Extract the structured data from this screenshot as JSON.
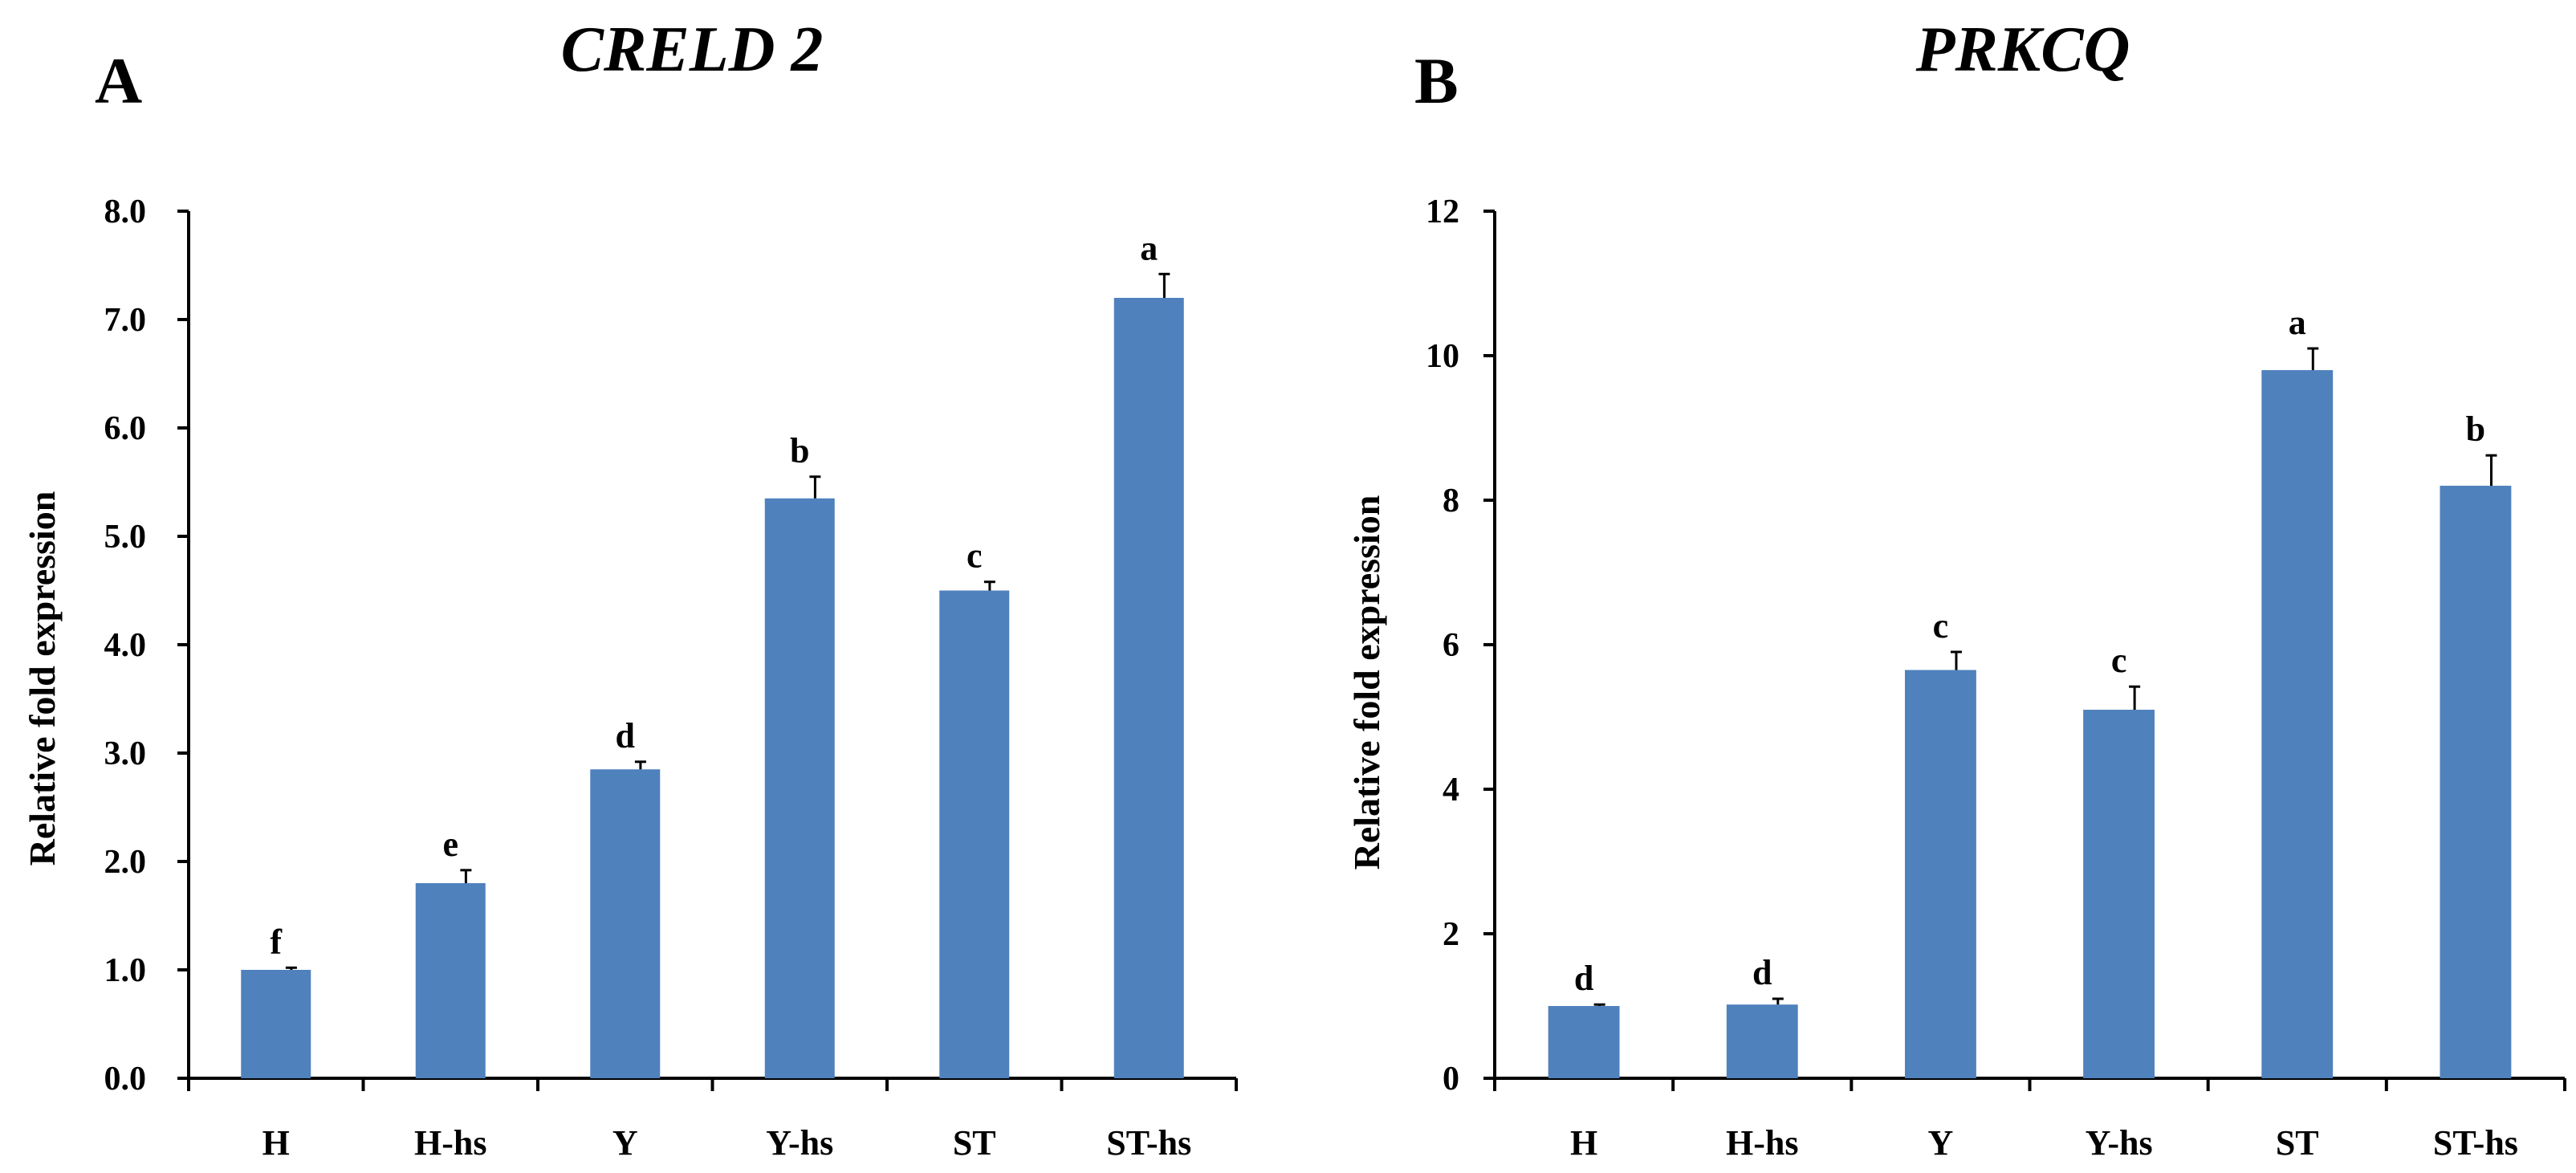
{
  "colors": {
    "bar": "#4F81BD",
    "axis": "#000000",
    "text": "#000000"
  },
  "chart_data": [
    {
      "type": "bar",
      "panel": "A",
      "title": "CRELD 2",
      "xlabel": "",
      "ylabel": "Relative fold expression",
      "ylim": [
        0,
        8
      ],
      "yticks": [
        0,
        1,
        2,
        3,
        4,
        5,
        6,
        7,
        8
      ],
      "ytick_labels": [
        "0.0",
        "1.0",
        "2.0",
        "3.0",
        "4.0",
        "5.0",
        "6.0",
        "7.0",
        "8.0"
      ],
      "categories": [
        "H",
        "H-hs",
        "Y",
        "Y-hs",
        "ST",
        "ST-hs"
      ],
      "values": [
        1.0,
        1.8,
        2.85,
        5.35,
        4.5,
        7.2
      ],
      "errors": [
        0.02,
        0.12,
        0.07,
        0.2,
        0.08,
        0.22
      ],
      "sig_letters": [
        "f",
        "e",
        "d",
        "b",
        "c",
        "a"
      ]
    },
    {
      "type": "bar",
      "panel": "B",
      "title": "PRKCQ",
      "xlabel": "",
      "ylabel": "Relative fold expression",
      "ylim": [
        0,
        12
      ],
      "yticks": [
        0,
        2,
        4,
        6,
        8,
        10,
        12
      ],
      "ytick_labels": [
        "0",
        "2",
        "4",
        "6",
        "8",
        "10",
        "12"
      ],
      "categories": [
        "H",
        "H-hs",
        "Y",
        "Y-hs",
        "ST",
        "ST-hs"
      ],
      "values": [
        1.0,
        1.02,
        5.65,
        5.1,
        9.8,
        8.2
      ],
      "errors": [
        0.02,
        0.08,
        0.25,
        0.32,
        0.3,
        0.42
      ],
      "sig_letters": [
        "d",
        "d",
        "c",
        "c",
        "a",
        "b"
      ]
    }
  ]
}
